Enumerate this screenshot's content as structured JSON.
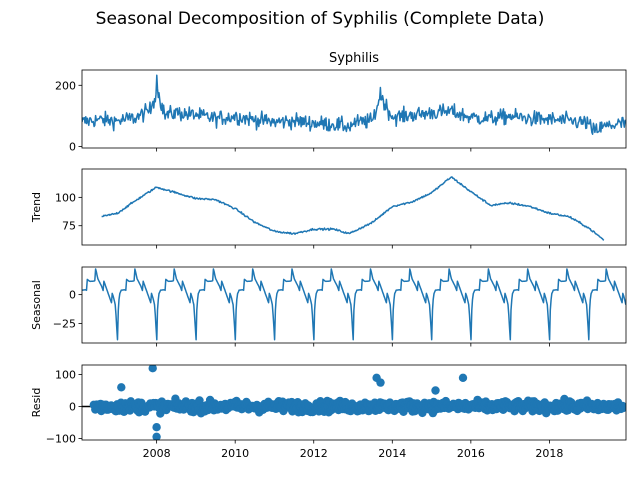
{
  "figure": {
    "suptitle": "Seasonal Decomposition of Syphilis (Complete Data)",
    "line_color": "#1f77b4"
  },
  "chart_data": [
    {
      "type": "line",
      "panel": "observed",
      "title": "Syphilis",
      "ylabel": "",
      "xlim": [
        2006.1,
        2019.95
      ],
      "ylim": [
        -5,
        250
      ],
      "yticks": [
        0,
        200
      ],
      "xticks": [
        2008,
        2010,
        2012,
        2014,
        2016,
        2018
      ],
      "show_xtick_labels": false,
      "series": [
        {
          "x": [
            2006.1,
            2006.5,
            2007.0,
            2007.5,
            2007.9,
            2008.0,
            2008.2,
            2008.5,
            2009.0,
            2009.5,
            2010.0,
            2010.5,
            2011.0,
            2011.5,
            2012.0,
            2012.5,
            2012.9,
            2013.0,
            2013.5,
            2013.7,
            2014.0,
            2014.5,
            2015.0,
            2015.5,
            2016.0,
            2016.5,
            2017.0,
            2017.5,
            2018.0,
            2018.5,
            2019.0,
            2019.1,
            2019.5,
            2019.95
          ],
          "y": [
            80,
            90,
            85,
            100,
            140,
            235,
            110,
            120,
            110,
            95,
            105,
            90,
            80,
            85,
            75,
            70,
            60,
            75,
            85,
            195,
            100,
            110,
            120,
            125,
            100,
            95,
            105,
            95,
            90,
            85,
            75,
            40,
            65,
            75
          ]
        }
      ]
    },
    {
      "type": "line",
      "panel": "trend",
      "title": "",
      "ylabel": "Trend",
      "xlim": [
        2006.1,
        2019.95
      ],
      "ylim": [
        58,
        125
      ],
      "yticks": [
        75,
        100
      ],
      "xticks": [
        2008,
        2010,
        2012,
        2014,
        2016,
        2018
      ],
      "show_xtick_labels": false,
      "series": [
        {
          "x": [
            2006.6,
            2007.0,
            2007.5,
            2008.0,
            2008.5,
            2009.0,
            2009.5,
            2010.0,
            2010.5,
            2011.0,
            2011.5,
            2012.0,
            2012.5,
            2012.9,
            2013.5,
            2014.0,
            2014.5,
            2015.0,
            2015.5,
            2016.0,
            2016.5,
            2017.0,
            2017.5,
            2018.0,
            2018.5,
            2019.0,
            2019.4
          ],
          "y": [
            83,
            86,
            98,
            109,
            104,
            99,
            98,
            90,
            78,
            70,
            68,
            72,
            72,
            68,
            78,
            92,
            96,
            104,
            118,
            105,
            93,
            95,
            92,
            86,
            83,
            73,
            62
          ]
        }
      ]
    },
    {
      "type": "line",
      "panel": "seasonal",
      "title": "",
      "ylabel": "Seasonal",
      "xlim": [
        2006.1,
        2019.95
      ],
      "ylim": [
        -42,
        24
      ],
      "yticks": [
        -25,
        0
      ],
      "xticks": [
        2008,
        2010,
        2012,
        2014,
        2016,
        2018
      ],
      "show_xtick_labels": false,
      "pattern": {
        "period": 1,
        "phase": [
          0.0,
          0.03,
          0.06,
          0.1,
          0.2,
          0.3,
          0.4,
          0.45,
          0.5,
          0.6,
          0.7,
          0.8,
          0.9,
          0.95,
          0.99
        ],
        "values": [
          -38,
          -12,
          -2,
          3,
          8,
          10,
          15,
          18,
          12,
          10,
          5,
          0,
          -5,
          -10,
          -30
        ]
      }
    },
    {
      "type": "scatter",
      "panel": "resid",
      "title": "",
      "ylabel": "Resid",
      "xlim": [
        2006.1,
        2019.95
      ],
      "ylim": [
        -105,
        130
      ],
      "yticks": [
        -100,
        0,
        100
      ],
      "xticks": [
        2008,
        2010,
        2012,
        2014,
        2016,
        2018
      ],
      "xtick_labels": [
        "2008",
        "2010",
        "2012",
        "2014",
        "2016",
        "2018"
      ],
      "show_xtick_labels": true,
      "zero_line": true,
      "outliers": {
        "x": [
          2007.9,
          2008.0,
          2008.0,
          2007.1,
          2013.6,
          2013.7,
          2015.8,
          2015.1
        ],
        "y": [
          120,
          -95,
          -65,
          60,
          90,
          75,
          90,
          50
        ]
      }
    }
  ]
}
